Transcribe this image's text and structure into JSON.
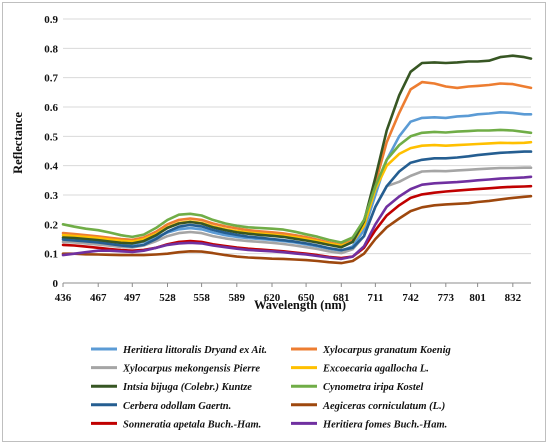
{
  "chart_data": {
    "type": "line",
    "xlabel": "Wavelength (nm)",
    "ylabel": "Reflectance",
    "xlim": [
      436,
      848
    ],
    "ylim": [
      0,
      0.9
    ],
    "x_tick_labels": [
      "436",
      "467",
      "497",
      "528",
      "558",
      "589",
      "620",
      "650",
      "681",
      "711",
      "742",
      "773",
      "801",
      "832"
    ],
    "y_tick_labels": [
      "0",
      "0.1",
      "0.2",
      "0.3",
      "0.4",
      "0.5",
      "0.6",
      "0.7",
      "0.8",
      "0.9"
    ],
    "legend_position": "bottom",
    "x": [
      436,
      446,
      456,
      467,
      477,
      487,
      497,
      507,
      518,
      528,
      538,
      548,
      558,
      568,
      579,
      589,
      599,
      610,
      620,
      630,
      640,
      650,
      660,
      670,
      681,
      691,
      701,
      711,
      721,
      732,
      742,
      752,
      763,
      773,
      783,
      793,
      801,
      811,
      821,
      832,
      842,
      848
    ],
    "series": [
      {
        "name": "Heritiera littoralis Dryand ex Ait.",
        "color": "#5b9bd5",
        "values": [
          0.152,
          0.15,
          0.147,
          0.143,
          0.138,
          0.134,
          0.132,
          0.14,
          0.155,
          0.172,
          0.183,
          0.187,
          0.183,
          0.172,
          0.163,
          0.157,
          0.153,
          0.15,
          0.147,
          0.143,
          0.138,
          0.132,
          0.125,
          0.117,
          0.11,
          0.125,
          0.18,
          0.3,
          0.42,
          0.5,
          0.55,
          0.563,
          0.565,
          0.563,
          0.568,
          0.57,
          0.575,
          0.578,
          0.582,
          0.58,
          0.575,
          0.575
        ]
      },
      {
        "name": "Xylocarpus granatum Koenig",
        "color": "#ed7d31",
        "values": [
          0.17,
          0.167,
          0.163,
          0.159,
          0.154,
          0.15,
          0.147,
          0.155,
          0.175,
          0.2,
          0.215,
          0.22,
          0.215,
          0.203,
          0.193,
          0.186,
          0.18,
          0.176,
          0.173,
          0.169,
          0.163,
          0.156,
          0.148,
          0.138,
          0.13,
          0.145,
          0.205,
          0.34,
          0.48,
          0.58,
          0.66,
          0.685,
          0.68,
          0.67,
          0.665,
          0.67,
          0.672,
          0.675,
          0.68,
          0.678,
          0.67,
          0.665
        ]
      },
      {
        "name": "Xylocarpus mekongensis Pierre",
        "color": "#a5a5a5",
        "values": [
          0.14,
          0.138,
          0.135,
          0.131,
          0.127,
          0.123,
          0.121,
          0.128,
          0.143,
          0.16,
          0.17,
          0.174,
          0.17,
          0.16,
          0.152,
          0.147,
          0.143,
          0.14,
          0.137,
          0.133,
          0.128,
          0.122,
          0.116,
          0.108,
          0.102,
          0.115,
          0.16,
          0.26,
          0.33,
          0.345,
          0.365,
          0.38,
          0.382,
          0.381,
          0.384,
          0.386,
          0.388,
          0.39,
          0.392,
          0.392,
          0.393,
          0.393
        ]
      },
      {
        "name": "Excoecaria agallocha L.",
        "color": "#ffc000",
        "values": [
          0.163,
          0.16,
          0.157,
          0.153,
          0.148,
          0.144,
          0.141,
          0.149,
          0.167,
          0.19,
          0.205,
          0.21,
          0.205,
          0.193,
          0.183,
          0.177,
          0.172,
          0.168,
          0.165,
          0.161,
          0.156,
          0.15,
          0.143,
          0.134,
          0.127,
          0.14,
          0.195,
          0.32,
          0.4,
          0.44,
          0.46,
          0.468,
          0.47,
          0.468,
          0.47,
          0.472,
          0.474,
          0.476,
          0.478,
          0.477,
          0.478,
          0.48
        ]
      },
      {
        "name": "Intsia bijuga (Colebr.) Kuntze",
        "color": "#375623",
        "values": [
          0.155,
          0.153,
          0.15,
          0.146,
          0.141,
          0.137,
          0.135,
          0.143,
          0.163,
          0.188,
          0.203,
          0.208,
          0.203,
          0.19,
          0.18,
          0.173,
          0.168,
          0.164,
          0.161,
          0.157,
          0.151,
          0.145,
          0.138,
          0.13,
          0.122,
          0.14,
          0.21,
          0.36,
          0.52,
          0.64,
          0.72,
          0.75,
          0.752,
          0.75,
          0.752,
          0.755,
          0.755,
          0.758,
          0.77,
          0.775,
          0.77,
          0.765
        ]
      },
      {
        "name": "Cynometra iripa Kostel",
        "color": "#70ad47",
        "values": [
          0.2,
          0.192,
          0.185,
          0.18,
          0.172,
          0.163,
          0.157,
          0.165,
          0.188,
          0.215,
          0.233,
          0.236,
          0.23,
          0.215,
          0.203,
          0.195,
          0.19,
          0.187,
          0.185,
          0.182,
          0.175,
          0.166,
          0.158,
          0.147,
          0.138,
          0.155,
          0.215,
          0.33,
          0.42,
          0.47,
          0.5,
          0.512,
          0.515,
          0.513,
          0.516,
          0.518,
          0.52,
          0.52,
          0.522,
          0.52,
          0.515,
          0.512
        ]
      },
      {
        "name": "Cerbera odollam Gaertn.",
        "color": "#255e91",
        "values": [
          0.148,
          0.145,
          0.142,
          0.138,
          0.133,
          0.128,
          0.124,
          0.13,
          0.15,
          0.175,
          0.192,
          0.198,
          0.193,
          0.181,
          0.171,
          0.164,
          0.158,
          0.154,
          0.15,
          0.146,
          0.141,
          0.135,
          0.128,
          0.119,
          0.112,
          0.12,
          0.16,
          0.26,
          0.33,
          0.38,
          0.41,
          0.42,
          0.425,
          0.425,
          0.428,
          0.432,
          0.436,
          0.44,
          0.444,
          0.446,
          0.448,
          0.448
        ]
      },
      {
        "name": "Aegiceras corniculatum (L.)",
        "color": "#9e480e",
        "values": [
          0.1,
          0.1,
          0.098,
          0.097,
          0.096,
          0.095,
          0.095,
          0.095,
          0.097,
          0.1,
          0.105,
          0.108,
          0.107,
          0.102,
          0.095,
          0.09,
          0.087,
          0.085,
          0.083,
          0.082,
          0.08,
          0.078,
          0.075,
          0.071,
          0.068,
          0.075,
          0.1,
          0.15,
          0.19,
          0.22,
          0.245,
          0.258,
          0.265,
          0.268,
          0.27,
          0.272,
          0.276,
          0.28,
          0.285,
          0.29,
          0.294,
          0.296
        ]
      },
      {
        "name": "Sonneratia apetala Buch.-Ham.",
        "color": "#c00000",
        "values": [
          0.13,
          0.128,
          0.124,
          0.12,
          0.116,
          0.112,
          0.11,
          0.113,
          0.12,
          0.132,
          0.14,
          0.143,
          0.14,
          0.132,
          0.126,
          0.121,
          0.117,
          0.114,
          0.111,
          0.108,
          0.104,
          0.1,
          0.095,
          0.089,
          0.085,
          0.09,
          0.12,
          0.18,
          0.23,
          0.265,
          0.29,
          0.302,
          0.308,
          0.312,
          0.315,
          0.318,
          0.32,
          0.323,
          0.326,
          0.328,
          0.329,
          0.33
        ]
      },
      {
        "name": "Heritiera fomes Buch.-Ham.",
        "color": "#7030a0",
        "values": [
          0.095,
          0.1,
          0.105,
          0.11,
          0.11,
          0.108,
          0.106,
          0.11,
          0.12,
          0.13,
          0.135,
          0.137,
          0.135,
          0.128,
          0.122,
          0.117,
          0.113,
          0.11,
          0.108,
          0.105,
          0.101,
          0.097,
          0.092,
          0.087,
          0.082,
          0.09,
          0.125,
          0.2,
          0.26,
          0.295,
          0.32,
          0.335,
          0.34,
          0.342,
          0.344,
          0.347,
          0.35,
          0.353,
          0.356,
          0.358,
          0.36,
          0.362
        ]
      }
    ]
  }
}
